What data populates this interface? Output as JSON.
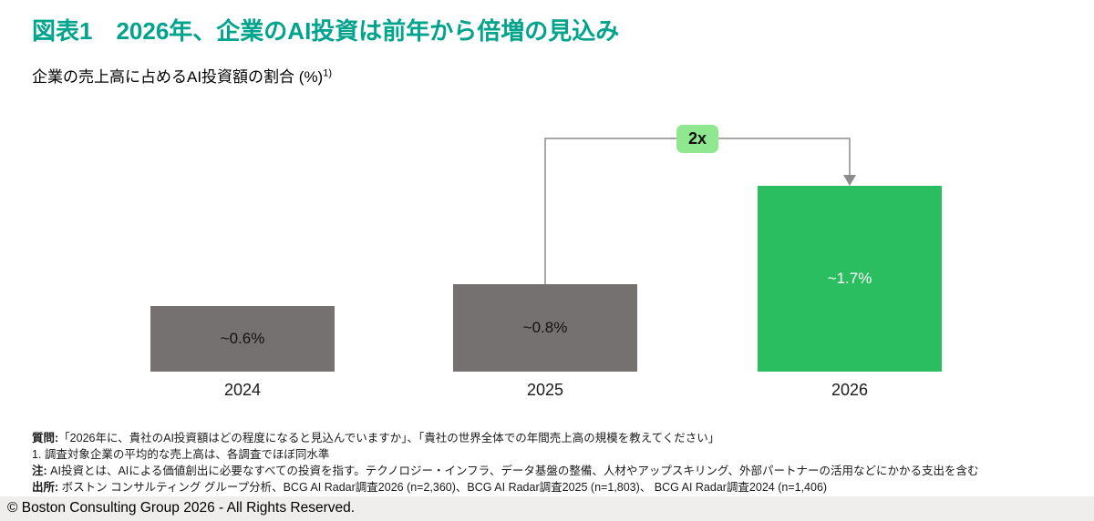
{
  "page": {
    "title": "図表1　2026年、企業のAI投資は前年から倍増の見込み",
    "copyright": "© Boston Consulting Group 2026 - All Rights Reserved."
  },
  "chart_data": {
    "type": "bar",
    "title": "企業の売上高に占めるAI投資額の割合 (%)",
    "title_superscript": "1)",
    "categories": [
      "2024",
      "2025",
      "2026"
    ],
    "values": [
      0.6,
      0.8,
      1.7
    ],
    "value_labels": [
      "~0.6%",
      "~0.8%",
      "~1.7%"
    ],
    "annotation_badge": "2x",
    "bar_colors": [
      "#767171",
      "#767171",
      "#2BBE60"
    ],
    "value_label_colors": [
      "#111111",
      "#111111",
      "#ffffff"
    ],
    "axes": "none",
    "grid": false,
    "legend": "none",
    "ylim": [
      0,
      2
    ]
  },
  "footnotes": [
    {
      "label": "質問:",
      "text": "「2026年に、貴社のAI投資額はどの程度になると見込んでいますか」、「貴社の世界全体での年間売上高の規模を教えてください」"
    },
    {
      "label": "",
      "text": "1. 調査対象企業の平均的な売上高は、各調査でほぼ同水準"
    },
    {
      "label": "注: ",
      "text": "AI投資とは、AIによる価値創出に必要なすべての投資を指す。テクノロジー・インフラ、データ基盤の整備、人材やアップスキリング、外部パートナーの活用などにかかる支出を含む"
    },
    {
      "label": "出所: ",
      "text": "ボストン コンサルティング グループ分析、BCG AI Radar調査2026 (n=2,360)、BCG AI Radar調査2025 (n=1,803)、 BCG AI Radar調査2024 (n=1,406)"
    }
  ],
  "colors": {
    "title_teal": "#00A38B",
    "bar_gray": "#767171",
    "bar_green": "#2BBE60",
    "badge_green": "#8FE78F",
    "connector_gray": "#8C8C8C",
    "footer_strip": "#EFEEEC"
  }
}
